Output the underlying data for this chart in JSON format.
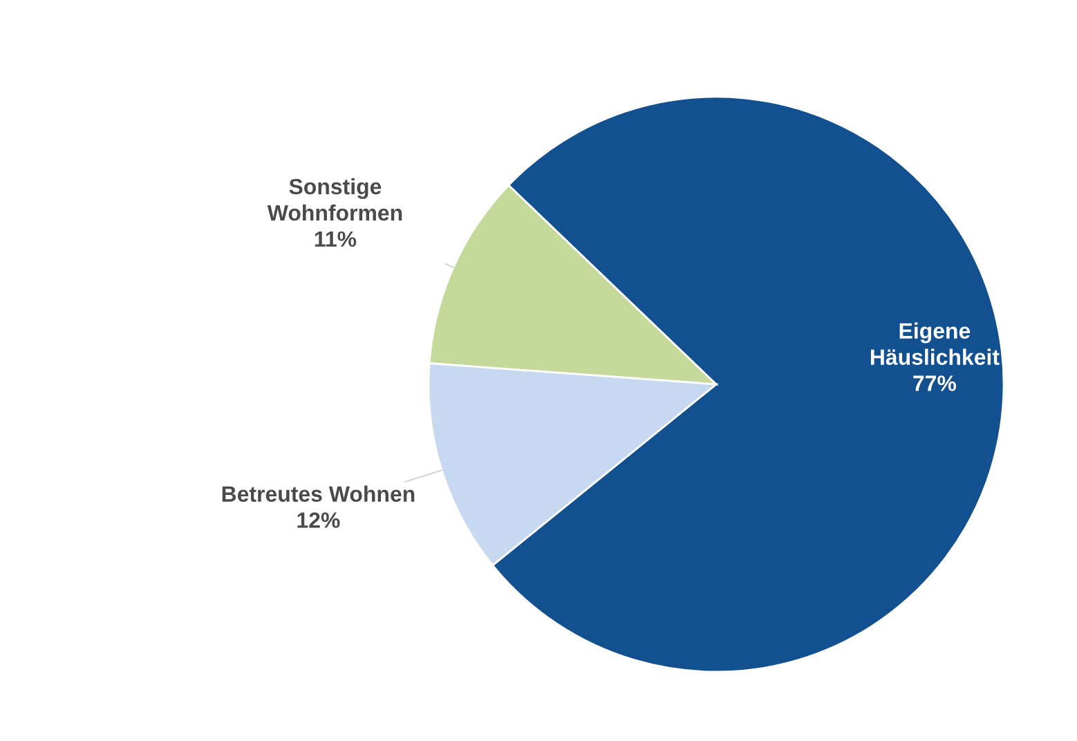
{
  "chart_data": {
    "type": "pie",
    "categories": [
      "Eigene\nHäuslichkeit",
      "Sonstige\nWohnformen",
      "Betreutes Wohnen"
    ],
    "values": [
      77,
      11,
      12
    ],
    "colors": [
      "#12508f",
      "#c5d99a",
      "#c6d9f0"
    ],
    "value_labels": [
      "77%",
      "11%",
      "12%"
    ]
  }
}
